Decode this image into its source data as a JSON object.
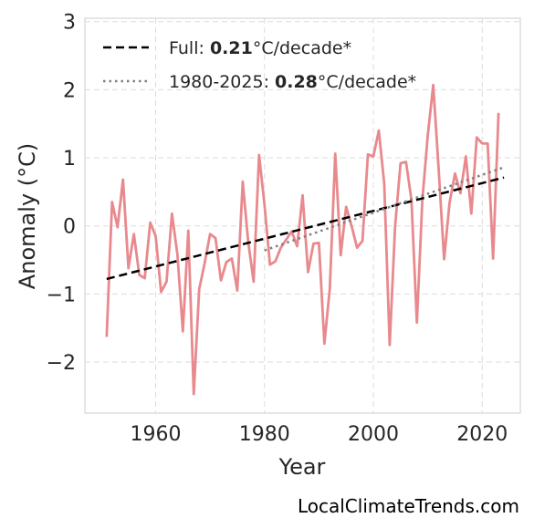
{
  "chart_data": {
    "type": "line",
    "xlabel": "Year",
    "ylabel": "Anomaly (°C)",
    "xlim": [
      1947,
      2027
    ],
    "ylim": [
      -2.75,
      3.05
    ],
    "xticks": [
      1960,
      1980,
      2000,
      2020
    ],
    "yticks": [
      -2,
      -1,
      0,
      1,
      2,
      3
    ],
    "ytick_labels": [
      "−2",
      "−1",
      "0",
      "1",
      "2",
      "3"
    ],
    "grid": true,
    "legend_position": "top-left",
    "legend": [
      {
        "label_prefix": "Full: ",
        "label_value": "0.21",
        "label_suffix": "°C/decade*",
        "style": "dashed",
        "color": "#000000"
      },
      {
        "label_prefix": "1980-2025: ",
        "label_value": "0.28",
        "label_suffix": "°C/decade*",
        "style": "dotted",
        "color": "#808080"
      }
    ],
    "series": [
      {
        "style": "solid",
        "color": "#e8898d",
        "x": [
          1951,
          1952,
          1953,
          1954,
          1955,
          1956,
          1957,
          1958,
          1959,
          1960,
          1961,
          1962,
          1963,
          1964,
          1965,
          1966,
          1967,
          1968,
          1969,
          1970,
          1971,
          1972,
          1973,
          1974,
          1975,
          1976,
          1977,
          1978,
          1979,
          1980,
          1981,
          1982,
          1983,
          1984,
          1985,
          1986,
          1987,
          1988,
          1989,
          1990,
          1991,
          1992,
          1993,
          1994,
          1995,
          1996,
          1997,
          1998,
          1999,
          2000,
          2001,
          2002,
          2003,
          2004,
          2005,
          2006,
          2007,
          2008,
          2009,
          2010,
          2011,
          2012,
          2013,
          2014,
          2015,
          2016,
          2017,
          2018,
          2019,
          2020,
          2021,
          2022,
          2023,
          2024
        ],
        "y": [
          -1.63,
          0.35,
          -0.02,
          0.68,
          -0.62,
          -0.12,
          -0.72,
          -0.77,
          0.05,
          -0.15,
          -0.97,
          -0.82,
          0.18,
          -0.42,
          -1.55,
          -0.07,
          -2.47,
          -0.93,
          -0.55,
          -0.12,
          -0.18,
          -0.8,
          -0.53,
          -0.48,
          -0.95,
          0.65,
          -0.23,
          -0.82,
          1.04,
          0.31,
          -0.57,
          -0.52,
          -0.32,
          -0.2,
          -0.08,
          -0.3,
          0.45,
          -0.68,
          -0.26,
          -0.25,
          -1.73,
          -0.92,
          1.06,
          -0.43,
          0.28,
          0.0,
          -0.32,
          -0.22,
          1.05,
          1.02,
          1.4,
          0.62,
          -1.75,
          0.0,
          0.92,
          0.94,
          0.38,
          -1.42,
          0.38,
          1.33,
          2.07,
          0.83,
          -0.49,
          0.34,
          0.77,
          0.48,
          1.02,
          0.18,
          1.3,
          1.21,
          1.21,
          -0.48,
          1.66,
          null
        ]
      },
      {
        "name": "Full",
        "style": "dashed",
        "color": "#000000",
        "x": [
          1951,
          2024
        ],
        "y": [
          -0.78,
          0.71
        ]
      },
      {
        "name": "1980-2025",
        "style": "dotted",
        "color": "#808080",
        "x": [
          1980,
          2024
        ],
        "y": [
          -0.36,
          0.86
        ]
      }
    ]
  },
  "watermark": "LocalClimateTrends.com"
}
